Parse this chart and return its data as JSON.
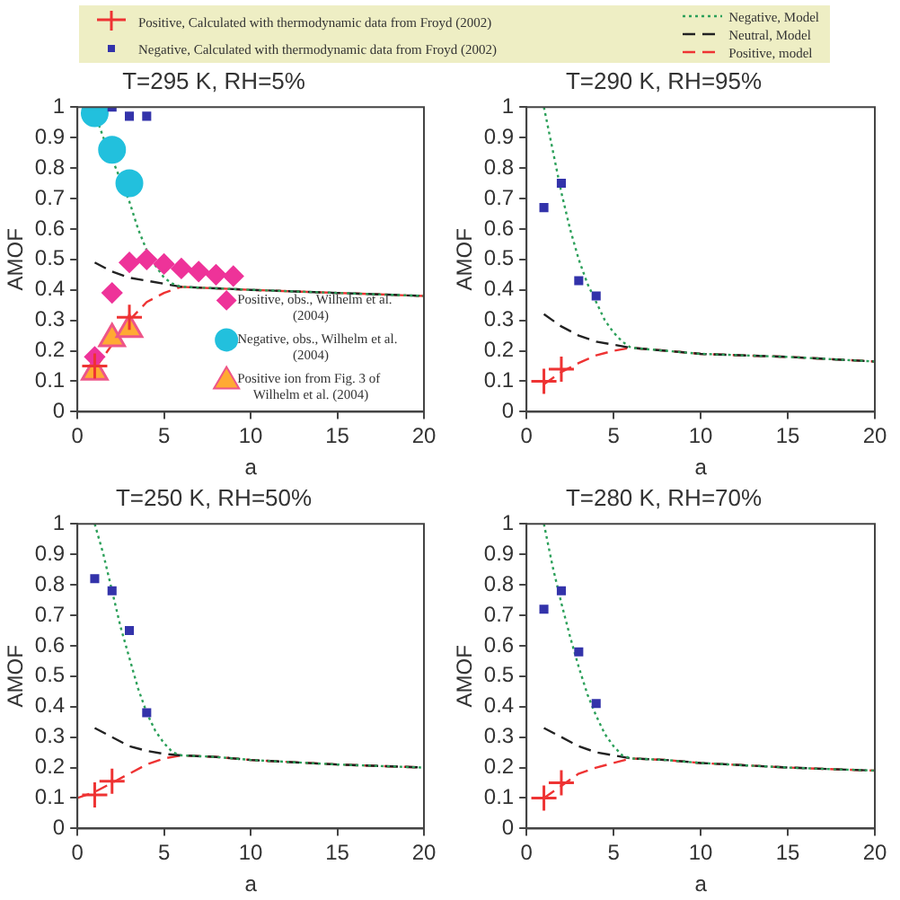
{
  "chart_data": [
    {
      "type": "line",
      "title": "T=295 K, RH=5%",
      "xlabel": "a",
      "ylabel": "AMOF",
      "xlim": [
        0,
        20
      ],
      "ylim": [
        0,
        1
      ],
      "xticks": [
        0,
        5,
        10,
        15,
        20
      ],
      "yticks": [
        0,
        0.1,
        0.2,
        0.3,
        0.4,
        0.5,
        0.6,
        0.7,
        0.8,
        0.9,
        1
      ],
      "grid": false,
      "legend": "top",
      "series": [
        {
          "name": "Negative, Model",
          "color": "#2ca05a",
          "line_style": "dotted",
          "marker": "none",
          "x": [
            1,
            1.5,
            2,
            2.5,
            3,
            3.5,
            4,
            4.5,
            5,
            5.5,
            6,
            8,
            10,
            15,
            20
          ],
          "values": [
            0.98,
            0.9,
            0.83,
            0.76,
            0.69,
            0.6,
            0.53,
            0.48,
            0.44,
            0.42,
            0.41,
            0.405,
            0.4,
            0.39,
            0.38
          ]
        },
        {
          "name": "Neutral, Model",
          "color": "#222222",
          "line_style": "dashed",
          "marker": "none",
          "x": [
            1,
            2,
            3,
            4,
            5,
            6,
            8,
            10,
            15,
            20
          ],
          "values": [
            0.49,
            0.46,
            0.44,
            0.43,
            0.42,
            0.41,
            0.405,
            0.4,
            0.39,
            0.38
          ]
        },
        {
          "name": "Positive, model",
          "color": "#ee3333",
          "line_style": "dashed",
          "marker": "none",
          "x": [
            1,
            2,
            3,
            4,
            5,
            6,
            8,
            10,
            15,
            20
          ],
          "values": [
            0.14,
            0.22,
            0.3,
            0.36,
            0.39,
            0.41,
            0.405,
            0.4,
            0.39,
            0.38
          ]
        },
        {
          "name": "Positive, Calculated with thermodynamic data from  Froyd (2002)",
          "type": "scatter",
          "color": "#ee3333",
          "marker": "cross",
          "x": [
            1,
            3
          ],
          "values": [
            0.15,
            0.31
          ]
        },
        {
          "name": "Negative, Calculated with thermodynamic data from  Froyd (2002)",
          "type": "scatter",
          "color": "#3333aa",
          "marker": "square",
          "x": [
            2,
            3,
            4
          ],
          "values": [
            1.0,
            0.97,
            0.97
          ]
        },
        {
          "name": "Positive, obs., Wilhelm et al. (2004)",
          "type": "scatter",
          "color": "#ee3399",
          "marker": "diamond",
          "x": [
            1,
            2,
            3,
            4,
            5,
            6,
            7,
            8,
            9
          ],
          "values": [
            0.18,
            0.39,
            0.49,
            0.5,
            0.485,
            0.47,
            0.46,
            0.45,
            0.445
          ]
        },
        {
          "name": "Negative, obs., Wilhelm et al. (2004)",
          "type": "scatter",
          "color": "#22c0dd",
          "marker": "circle",
          "x": [
            1,
            2,
            3
          ],
          "values": [
            0.98,
            0.86,
            0.75
          ]
        },
        {
          "name": "Positive ion from Fig. 3 of Wilhelm et al. (2004)",
          "type": "scatter",
          "color": "#ffaa33",
          "marker": "triangle",
          "x": [
            1,
            2,
            3
          ],
          "values": [
            0.13,
            0.24,
            0.27
          ]
        }
      ]
    },
    {
      "type": "line",
      "title": "T=290 K, RH=95%",
      "xlabel": "a",
      "ylabel": "AMOF",
      "xlim": [
        0,
        20
      ],
      "ylim": [
        0,
        1
      ],
      "xticks": [
        0,
        5,
        10,
        15,
        20
      ],
      "yticks": [
        0,
        0.1,
        0.2,
        0.3,
        0.4,
        0.5,
        0.6,
        0.7,
        0.8,
        0.9,
        1
      ],
      "grid": false,
      "series": [
        {
          "color": "#2ca05a",
          "line_style": "dotted",
          "marker": "none",
          "x": [
            1,
            1.5,
            2,
            2.5,
            3,
            3.5,
            4,
            4.5,
            5,
            5.5,
            6,
            8,
            10,
            15,
            20
          ],
          "values": [
            1.0,
            0.86,
            0.72,
            0.6,
            0.5,
            0.42,
            0.36,
            0.3,
            0.26,
            0.23,
            0.21,
            0.2,
            0.19,
            0.18,
            0.165
          ]
        },
        {
          "color": "#222222",
          "line_style": "dashed",
          "marker": "none",
          "x": [
            1,
            2,
            3,
            4,
            5,
            6,
            8,
            10,
            15,
            20
          ],
          "values": [
            0.32,
            0.28,
            0.25,
            0.23,
            0.22,
            0.21,
            0.2,
            0.19,
            0.18,
            0.165
          ]
        },
        {
          "color": "#ee3333",
          "line_style": "dashed",
          "marker": "none",
          "x": [
            1,
            2,
            3,
            4,
            5,
            6,
            8,
            10,
            15,
            20
          ],
          "values": [
            0.09,
            0.13,
            0.16,
            0.185,
            0.2,
            0.21,
            0.2,
            0.19,
            0.18,
            0.165
          ]
        },
        {
          "type": "scatter",
          "color": "#ee3333",
          "marker": "cross",
          "x": [
            1,
            2
          ],
          "values": [
            0.1,
            0.14
          ]
        },
        {
          "type": "scatter",
          "color": "#3333aa",
          "marker": "square",
          "x": [
            1,
            2,
            3,
            4
          ],
          "values": [
            0.67,
            0.75,
            0.43,
            0.38
          ]
        }
      ]
    },
    {
      "type": "line",
      "title": "T=250 K, RH=50%",
      "xlabel": "a",
      "ylabel": "AMOF",
      "xlim": [
        0,
        20
      ],
      "ylim": [
        0,
        1
      ],
      "xticks": [
        0,
        5,
        10,
        15,
        20
      ],
      "yticks": [
        0,
        0.1,
        0.2,
        0.3,
        0.4,
        0.5,
        0.6,
        0.7,
        0.8,
        0.9,
        1
      ],
      "grid": false,
      "series": [
        {
          "color": "#2ca05a",
          "line_style": "dotted",
          "marker": "none",
          "x": [
            1,
            1.5,
            2,
            2.5,
            3,
            3.5,
            4,
            4.5,
            5,
            5.5,
            6,
            8,
            10,
            15,
            20
          ],
          "values": [
            1.0,
            0.9,
            0.78,
            0.66,
            0.56,
            0.46,
            0.38,
            0.32,
            0.28,
            0.25,
            0.24,
            0.235,
            0.225,
            0.21,
            0.2
          ]
        },
        {
          "color": "#222222",
          "line_style": "dashed",
          "marker": "none",
          "x": [
            1,
            2,
            3,
            4,
            5,
            6,
            8,
            10,
            15,
            20
          ],
          "values": [
            0.33,
            0.3,
            0.27,
            0.255,
            0.245,
            0.24,
            0.235,
            0.225,
            0.21,
            0.2
          ]
        },
        {
          "color": "#ee3333",
          "line_style": "dashed",
          "marker": "none",
          "x": [
            0,
            1,
            2,
            3,
            4,
            5,
            6,
            8,
            10,
            15,
            20
          ],
          "values": [
            0.1,
            0.12,
            0.15,
            0.18,
            0.21,
            0.23,
            0.24,
            0.235,
            0.225,
            0.21,
            0.2
          ]
        },
        {
          "type": "scatter",
          "color": "#ee3333",
          "marker": "cross",
          "x": [
            1,
            2
          ],
          "values": [
            0.11,
            0.155
          ]
        },
        {
          "type": "scatter",
          "color": "#3333aa",
          "marker": "square",
          "x": [
            1,
            2,
            3,
            4
          ],
          "values": [
            0.82,
            0.78,
            0.65,
            0.38
          ]
        }
      ]
    },
    {
      "type": "line",
      "title": "T=280 K, RH=70%",
      "xlabel": "a",
      "ylabel": "AMOF",
      "xlim": [
        0,
        20
      ],
      "ylim": [
        0,
        1
      ],
      "xticks": [
        0,
        5,
        10,
        15,
        20
      ],
      "yticks": [
        0,
        0.1,
        0.2,
        0.3,
        0.4,
        0.5,
        0.6,
        0.7,
        0.8,
        0.9,
        1
      ],
      "grid": false,
      "series": [
        {
          "color": "#2ca05a",
          "line_style": "dotted",
          "marker": "none",
          "x": [
            1,
            1.5,
            2,
            2.5,
            3,
            3.5,
            4,
            4.5,
            5,
            5.5,
            6,
            8,
            10,
            15,
            20
          ],
          "values": [
            1.0,
            0.86,
            0.74,
            0.63,
            0.53,
            0.44,
            0.37,
            0.31,
            0.27,
            0.24,
            0.23,
            0.225,
            0.215,
            0.2,
            0.19
          ]
        },
        {
          "color": "#222222",
          "line_style": "dashed",
          "marker": "none",
          "x": [
            1,
            2,
            3,
            4,
            5,
            6,
            8,
            10,
            15,
            20
          ],
          "values": [
            0.33,
            0.3,
            0.27,
            0.25,
            0.24,
            0.23,
            0.225,
            0.215,
            0.2,
            0.19
          ]
        },
        {
          "color": "#ee3333",
          "line_style": "dashed",
          "marker": "none",
          "x": [
            1,
            2,
            3,
            4,
            5,
            6,
            8,
            10,
            15,
            20
          ],
          "values": [
            0.1,
            0.14,
            0.18,
            0.2,
            0.215,
            0.23,
            0.225,
            0.215,
            0.2,
            0.19
          ]
        },
        {
          "type": "scatter",
          "color": "#ee3333",
          "marker": "cross",
          "x": [
            1,
            2
          ],
          "values": [
            0.1,
            0.15
          ]
        },
        {
          "type": "scatter",
          "color": "#3333aa",
          "marker": "square",
          "x": [
            1,
            2,
            3,
            4
          ],
          "values": [
            0.72,
            0.78,
            0.58,
            0.41
          ]
        }
      ]
    }
  ]
}
